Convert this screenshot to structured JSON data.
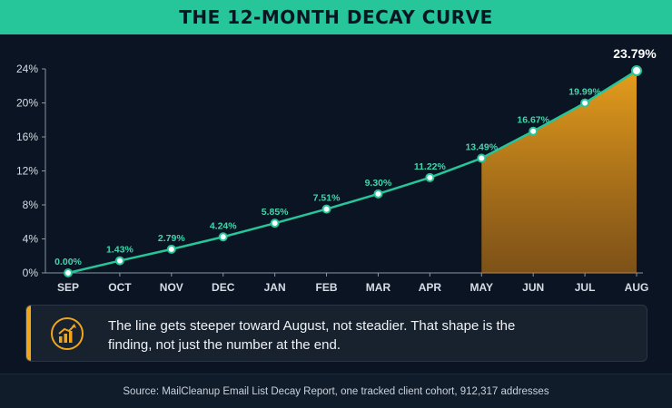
{
  "title": "THE 12-MONTH DECAY CURVE",
  "chart_data": {
    "type": "line",
    "title": "THE 12-MONTH DECAY CURVE",
    "categories": [
      "SEP",
      "OCT",
      "NOV",
      "DEC",
      "JAN",
      "FEB",
      "MAR",
      "APR",
      "MAY",
      "JUN",
      "JUL",
      "AUG"
    ],
    "values": [
      0.0,
      1.43,
      2.79,
      4.24,
      5.85,
      7.51,
      9.3,
      11.22,
      13.49,
      16.67,
      19.99,
      23.79
    ],
    "data_labels": [
      "0.00%",
      "1.43%",
      "2.79%",
      "4.24%",
      "5.85%",
      "7.51%",
      "9.30%",
      "11.22%",
      "13.49%",
      "16.67%",
      "19.99%",
      "23.79%"
    ],
    "y_ticks": [
      0,
      4,
      8,
      12,
      16,
      20,
      24
    ],
    "y_tick_labels": [
      "0%",
      "4%",
      "8%",
      "12%",
      "16%",
      "20%",
      "24%"
    ],
    "ylim": [
      0,
      24
    ],
    "grid": false,
    "highlight_range": [
      "MAY",
      "AUG"
    ],
    "line_color": "#27c59a",
    "highlight_color": "#f0a51c"
  },
  "callout": {
    "icon": "chart-growth-icon",
    "text": "The line gets steeper toward August, not steadier. That shape is the finding, not just the number at the end."
  },
  "footer": {
    "source": "Source: MailCleanup Email List Decay Report, one tracked client cohort, 912,317 addresses"
  }
}
